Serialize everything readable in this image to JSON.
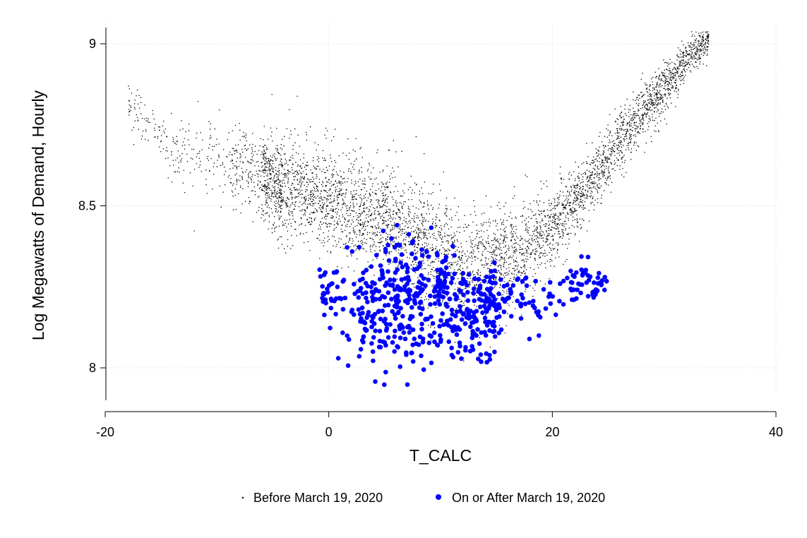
{
  "chart_data": {
    "type": "scatter",
    "title": "",
    "xlabel": "T_CALC",
    "ylabel": "Log Megawatts of Demand, Hourly",
    "xlim": [
      -20,
      40
    ],
    "ylim": [
      7.9,
      9.05
    ],
    "x_ticks": [
      -20,
      0,
      20,
      40
    ],
    "x_tick_labels": [
      "-20",
      "0",
      "20",
      "40"
    ],
    "y_ticks": [
      8,
      8.5,
      9
    ],
    "y_tick_labels": [
      "8",
      "8.5",
      "9"
    ],
    "grid": true,
    "legend_position": "bottom",
    "series": [
      {
        "name": "Before March 19, 2020",
        "color": "#000000",
        "marker": "tiny-dot",
        "x_range": [
          -18,
          34
        ],
        "description_values": "dense U-shaped cloud; minimum near x=12, y≈8.2",
        "trend": [
          [
            -18,
            8.82
          ],
          [
            -15,
            8.7
          ],
          [
            -10,
            8.64
          ],
          [
            -5,
            8.57
          ],
          [
            0,
            8.52
          ],
          [
            5,
            8.45
          ],
          [
            10,
            8.36
          ],
          [
            12,
            8.3
          ],
          [
            15,
            8.33
          ],
          [
            18,
            8.38
          ],
          [
            20,
            8.43
          ],
          [
            23,
            8.55
          ],
          [
            26,
            8.7
          ],
          [
            29,
            8.82
          ],
          [
            32,
            8.95
          ],
          [
            34,
            9.02
          ]
        ],
        "spread": [
          [
            -18,
            0.06
          ],
          [
            -10,
            0.12
          ],
          [
            0,
            0.14
          ],
          [
            10,
            0.17
          ],
          [
            15,
            0.15
          ],
          [
            20,
            0.1
          ],
          [
            30,
            0.07
          ],
          [
            34,
            0.04
          ]
        ]
      },
      {
        "name": "On or After March 19, 2020",
        "color": "#0000ff",
        "marker": "dot",
        "x_range": [
          -1,
          25
        ],
        "trend": [
          [
            -1,
            8.27
          ],
          [
            2,
            8.18
          ],
          [
            5,
            8.2
          ],
          [
            8,
            8.2
          ],
          [
            10,
            8.22
          ],
          [
            13,
            8.17
          ],
          [
            16,
            8.19
          ],
          [
            19,
            8.21
          ],
          [
            22,
            8.26
          ],
          [
            25,
            8.26
          ]
        ],
        "spread": [
          [
            -1,
            0.07
          ],
          [
            5,
            0.13
          ],
          [
            10,
            0.12
          ],
          [
            15,
            0.09
          ],
          [
            20,
            0.05
          ],
          [
            25,
            0.03
          ]
        ]
      }
    ]
  }
}
